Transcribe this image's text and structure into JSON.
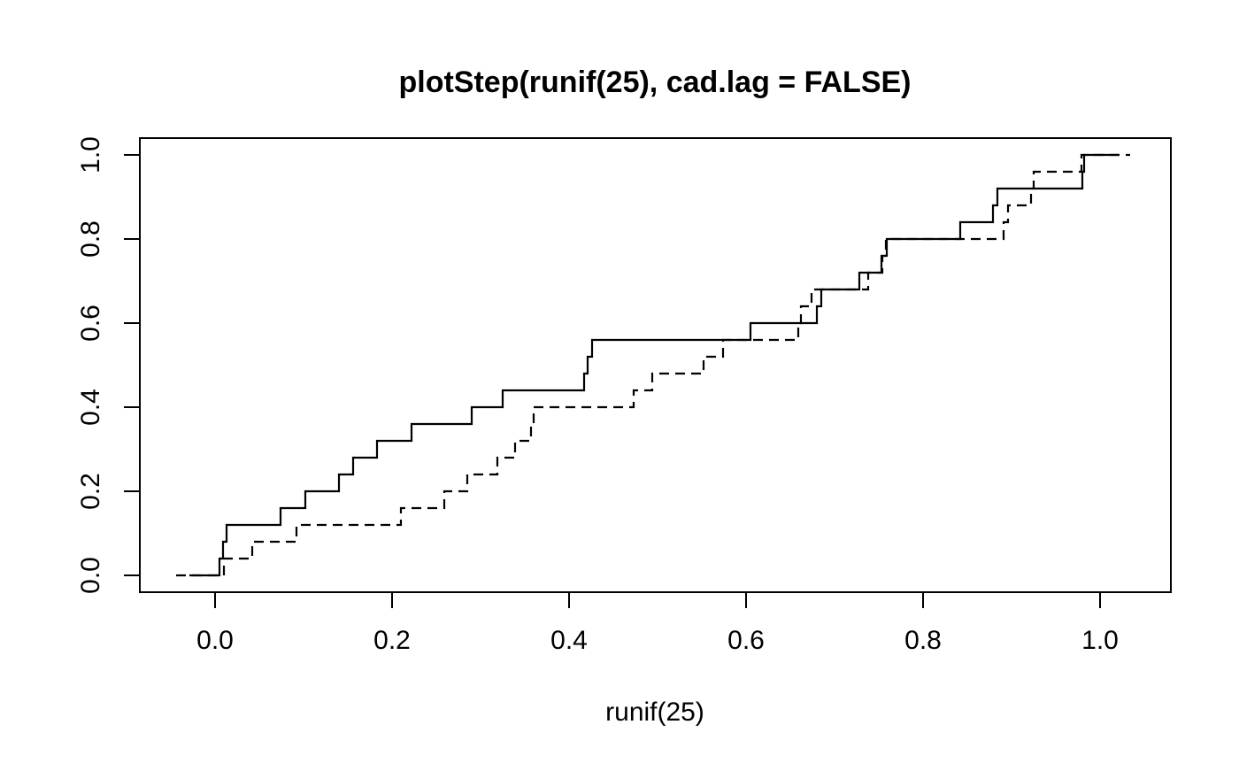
{
  "figure": {
    "background_color": "#ffffff",
    "foreground_color": "#000000"
  },
  "chart_data": {
    "type": "line",
    "subtype": "step-ecdf",
    "title": "plotStep(runif(25), cad.lag = FALSE)",
    "xlabel": "runif(25)",
    "ylabel": "",
    "grid": false,
    "legend": "none",
    "xlim": [
      -0.085,
      1.08
    ],
    "ylim": [
      -0.04,
      1.04
    ],
    "x_tick_values": [
      0.0,
      0.2,
      0.4,
      0.6,
      0.8,
      1.0
    ],
    "x_tick_labels": [
      "0.0",
      "0.2",
      "0.4",
      "0.6",
      "0.8",
      "1.0"
    ],
    "y_tick_values": [
      0.0,
      0.2,
      0.4,
      0.6,
      0.8,
      1.0
    ],
    "y_tick_labels": [
      "0.0",
      "0.2",
      "0.4",
      "0.6",
      "0.8",
      "1.0"
    ],
    "n_points": 25,
    "step_y": 0.04,
    "line_color": "#000000",
    "series": [
      {
        "name": "step-function-solid",
        "line_style": "solid",
        "start_x": -0.029,
        "end_x": 1.022,
        "jump_x": [
          0.005,
          0.009,
          0.013,
          0.074,
          0.102,
          0.14,
          0.156,
          0.183,
          0.222,
          0.29,
          0.325,
          0.417,
          0.421,
          0.426,
          0.605,
          0.68,
          0.685,
          0.728,
          0.753,
          0.759,
          0.842,
          0.879,
          0.884,
          0.98,
          0.982
        ]
      },
      {
        "name": "step-function-dashed",
        "line_style": "dashed",
        "start_x": -0.044,
        "end_x": 1.034,
        "jump_x": [
          0.01,
          0.042,
          0.092,
          0.21,
          0.259,
          0.285,
          0.319,
          0.339,
          0.357,
          0.36,
          0.473,
          0.494,
          0.552,
          0.574,
          0.659,
          0.662,
          0.674,
          0.738,
          0.754,
          0.758,
          0.891,
          0.896,
          0.922,
          0.925,
          0.979
        ]
      }
    ]
  }
}
